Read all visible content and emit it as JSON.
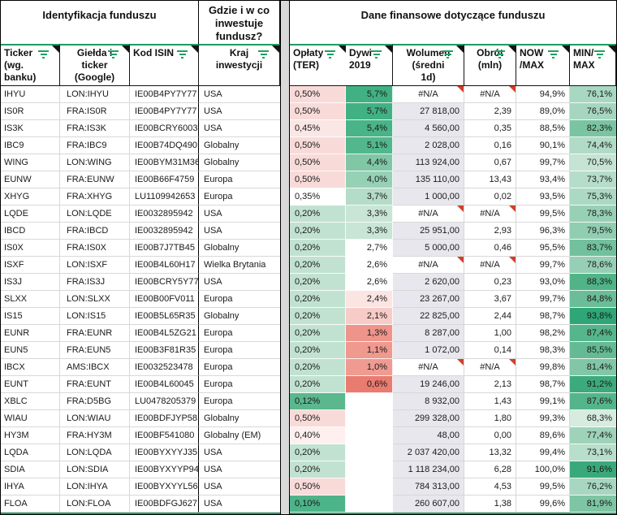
{
  "sections": {
    "identification": "Identyfikacja funduszu",
    "where": "Gdzie i w co\ninwestuje\nfundusz?",
    "financial": "Dane finansowe dotyczące funduszu"
  },
  "columns": [
    {
      "id": "ticker",
      "label": "Ticker\n(wg.\nbanku)",
      "align": "left"
    },
    {
      "id": "exchange",
      "label": "Giełda i\nticker\n(Google)",
      "align": "center"
    },
    {
      "id": "isin",
      "label": "Kod ISIN",
      "align": "left"
    },
    {
      "id": "country",
      "label": "Kraj\ninwestycji",
      "align": "center"
    },
    {
      "id": "ter",
      "label": "Opłaty\n(TER)",
      "align": "left"
    },
    {
      "id": "div2019",
      "label": "Dywi\n2019",
      "align": "left"
    },
    {
      "id": "volume",
      "label": "Wolumen\n(średni\n1d)",
      "align": "center"
    },
    {
      "id": "turnover",
      "label": "Obrót\n(mln)",
      "align": "center"
    },
    {
      "id": "now_max",
      "label": "NOW\n/MAX",
      "align": "left"
    },
    {
      "id": "min_max",
      "label": "MIN/\nMAX",
      "align": "left"
    }
  ],
  "rows": [
    {
      "ticker": "IHYU",
      "exchange": "LON:IHYU",
      "isin": "IE00B4PY7Y77",
      "country": "USA",
      "ter": "0,50%",
      "ter_bg": "#f8dbd9",
      "div2019": "5,7%",
      "div_bg": "#41b183",
      "volume": "#N/A",
      "turnover": "#N/A",
      "now_max": "94,9%",
      "min_max": "76,1%",
      "minmax_bg": "#a8d7c2"
    },
    {
      "ticker": "IS0R",
      "exchange": "FRA:IS0R",
      "isin": "IE00B4PY7Y77",
      "country": "USA",
      "ter": "0,50%",
      "ter_bg": "#f8dbd9",
      "div2019": "5,7%",
      "div_bg": "#41b183",
      "volume": "27 818,00",
      "turnover": "2,39",
      "now_max": "89,0%",
      "min_max": "76,5%",
      "minmax_bg": "#a6d6c0"
    },
    {
      "ticker": "IS3K",
      "exchange": "FRA:IS3K",
      "isin": "IE00BCRY6003",
      "country": "USA",
      "ter": "0,45%",
      "ter_bg": "#fae6e4",
      "div2019": "5,4%",
      "div_bg": "#49b487",
      "volume": "4 560,00",
      "turnover": "0,35",
      "now_max": "88,5%",
      "min_max": "82,3%",
      "minmax_bg": "#7bc4a2"
    },
    {
      "ticker": "IBC9",
      "exchange": "FRA:IBC9",
      "isin": "IE00B74DQ490",
      "country": "Globalny",
      "ter": "0,50%",
      "ter_bg": "#f8dbd9",
      "div2019": "5,1%",
      "div_bg": "#52b78c",
      "volume": "2 028,00",
      "turnover": "0,16",
      "now_max": "90,1%",
      "min_max": "74,4%",
      "minmax_bg": "#b1dbc7"
    },
    {
      "ticker": "WING",
      "exchange": "LON:WING",
      "isin": "IE00BYM31M36",
      "country": "Globalny",
      "ter": "0,50%",
      "ter_bg": "#f8dbd9",
      "div2019": "4,4%",
      "div_bg": "#7fc7a5",
      "volume": "113 924,00",
      "turnover": "0,67",
      "now_max": "99,7%",
      "min_max": "70,5%",
      "minmax_bg": "#c5e4d4"
    },
    {
      "ticker": "EUNW",
      "exchange": "FRA:EUNW",
      "isin": "IE00B66F4759",
      "country": "Europa",
      "ter": "0,50%",
      "ter_bg": "#f8dbd9",
      "div2019": "4,0%",
      "div_bg": "#97d1b5",
      "volume": "135 110,00",
      "turnover": "13,43",
      "now_max": "93,4%",
      "min_max": "73,7%",
      "minmax_bg": "#b5ddca"
    },
    {
      "ticker": "XHYG",
      "exchange": "FRA:XHYG",
      "isin": "LU1109942653",
      "country": "Europa",
      "ter": "0,35%",
      "ter_bg": "#ffffff",
      "div2019": "3,7%",
      "div_bg": "#b5dcc8",
      "volume": "1 000,00",
      "turnover": "0,02",
      "now_max": "93,5%",
      "min_max": "75,3%",
      "minmax_bg": "#acd9c4"
    },
    {
      "ticker": "LQDE",
      "exchange": "LON:LQDE",
      "isin": "IE0032895942",
      "country": "USA",
      "ter": "0,20%",
      "ter_bg": "#c2e2d1",
      "div2019": "3,3%",
      "div_bg": "#c8e5d5",
      "volume": "#N/A",
      "turnover": "#N/A",
      "now_max": "99,5%",
      "min_max": "78,3%",
      "minmax_bg": "#98d0b6"
    },
    {
      "ticker": "IBCD",
      "exchange": "FRA:IBCD",
      "isin": "IE0032895942",
      "country": "USA",
      "ter": "0,20%",
      "ter_bg": "#c2e2d1",
      "div2019": "3,3%",
      "div_bg": "#c8e5d5",
      "volume": "25 951,00",
      "turnover": "2,93",
      "now_max": "96,3%",
      "min_max": "79,5%",
      "minmax_bg": "#91cdb1"
    },
    {
      "ticker": "IS0X",
      "exchange": "FRA:IS0X",
      "isin": "IE00B7J7TB45",
      "country": "Globalny",
      "ter": "0,20%",
      "ter_bg": "#c2e2d1",
      "div2019": "2,7%",
      "div_bg": "#ffffff",
      "volume": "5 000,00",
      "turnover": "0,46",
      "now_max": "95,5%",
      "min_max": "83,7%",
      "minmax_bg": "#72c09c"
    },
    {
      "ticker": "ISXF",
      "exchange": "LON:ISXF",
      "isin": "IE00B4L60H17",
      "country": "Wielka Brytania",
      "ter": "0,20%",
      "ter_bg": "#c2e2d1",
      "div2019": "2,6%",
      "div_bg": "#ffffff",
      "volume": "#N/A",
      "turnover": "#N/A",
      "now_max": "99,7%",
      "min_max": "78,6%",
      "minmax_bg": "#96cfb5"
    },
    {
      "ticker": "IS3J",
      "exchange": "FRA:IS3J",
      "isin": "IE00BCRY5Y77",
      "country": "USA",
      "ter": "0,20%",
      "ter_bg": "#c2e2d1",
      "div2019": "2,6%",
      "div_bg": "#ffffff",
      "volume": "2 620,00",
      "turnover": "0,23",
      "now_max": "93,0%",
      "min_max": "88,3%",
      "minmax_bg": "#50b487"
    },
    {
      "ticker": "SLXX",
      "exchange": "LON:SLXX",
      "isin": "IE00B00FV011",
      "country": "Europa",
      "ter": "0,20%",
      "ter_bg": "#c2e2d1",
      "div2019": "2,4%",
      "div_bg": "#fbe5e3",
      "volume": "23 267,00",
      "turnover": "3,67",
      "now_max": "99,7%",
      "min_max": "84,8%",
      "minmax_bg": "#6abd97"
    },
    {
      "ticker": "IS15",
      "exchange": "LON:IS15",
      "isin": "IE00B5L65R35",
      "country": "Globalny",
      "ter": "0,20%",
      "ter_bg": "#c2e2d1",
      "div2019": "2,1%",
      "div_bg": "#f7ccc8",
      "volume": "22 825,00",
      "turnover": "2,44",
      "now_max": "98,7%",
      "min_max": "93,8%",
      "minmax_bg": "#2fa677"
    },
    {
      "ticker": "EUNR",
      "exchange": "FRA:EUNR",
      "isin": "IE00B4L5ZG21",
      "country": "Europa",
      "ter": "0,20%",
      "ter_bg": "#c2e2d1",
      "div2019": "1,3%",
      "div_bg": "#ef948b",
      "volume": "8 287,00",
      "turnover": "1,00",
      "now_max": "98,2%",
      "min_max": "87,4%",
      "minmax_bg": "#56b68b"
    },
    {
      "ticker": "EUN5",
      "exchange": "FRA:EUN5",
      "isin": "IE00B3F81R35",
      "country": "Europa",
      "ter": "0,20%",
      "ter_bg": "#c2e2d1",
      "div2019": "1,1%",
      "div_bg": "#ef998f",
      "volume": "1 072,00",
      "turnover": "0,14",
      "now_max": "98,3%",
      "min_max": "85,5%",
      "minmax_bg": "#64bb93"
    },
    {
      "ticker": "IBCX",
      "exchange": "AMS:IBCX",
      "isin": "IE0032523478",
      "country": "Europa",
      "ter": "0,20%",
      "ter_bg": "#c2e2d1",
      "div2019": "1,0%",
      "div_bg": "#f09b92",
      "volume": "#N/A",
      "turnover": "#N/A",
      "now_max": "99,8%",
      "min_max": "81,4%",
      "minmax_bg": "#81c6a6"
    },
    {
      "ticker": "EUNT",
      "exchange": "FRA:EUNT",
      "isin": "IE00B4L60045",
      "country": "Europa",
      "ter": "0,20%",
      "ter_bg": "#c2e2d1",
      "div2019": "0,6%",
      "div_bg": "#ea7b70",
      "volume": "19 246,00",
      "turnover": "2,13",
      "now_max": "98,7%",
      "min_max": "91,2%",
      "minmax_bg": "#3daa7c"
    },
    {
      "ticker": "XBLC",
      "exchange": "FRA:D5BG",
      "isin": "LU0478205379",
      "country": "Europa",
      "ter": "0,12%",
      "ter_bg": "#5ab78e",
      "div2019": "",
      "div_bg": "#ffffff",
      "volume": "8 932,00",
      "turnover": "1,43",
      "now_max": "99,1%",
      "min_max": "87,6%",
      "minmax_bg": "#55b58a"
    },
    {
      "ticker": "WIAU",
      "exchange": "LON:WIAU",
      "isin": "IE00BDFJYP58",
      "country": "Globalny",
      "ter": "0,50%",
      "ter_bg": "#f8dbd9",
      "div2019": "",
      "div_bg": "#ffffff",
      "volume": "299 328,00",
      "turnover": "1,80",
      "now_max": "99,3%",
      "min_max": "68,3%",
      "minmax_bg": "#d5ecdf"
    },
    {
      "ticker": "HY3M",
      "exchange": "FRA:HY3M",
      "isin": "IE00BF541080",
      "country": "Globalny (EM)",
      "ter": "0,40%",
      "ter_bg": "#fdf0ef",
      "div2019": "",
      "div_bg": "#ffffff",
      "volume": "48,00",
      "turnover": "0,00",
      "now_max": "89,6%",
      "min_max": "77,4%",
      "minmax_bg": "#9ed3ba"
    },
    {
      "ticker": "LQDA",
      "exchange": "LON:LQDA",
      "isin": "IE00BYXYYJ35",
      "country": "USA",
      "ter": "0,20%",
      "ter_bg": "#c2e2d1",
      "div2019": "",
      "div_bg": "#ffffff",
      "volume": "2 037 420,00",
      "turnover": "13,32",
      "now_max": "99,4%",
      "min_max": "73,1%",
      "minmax_bg": "#b8decc"
    },
    {
      "ticker": "SDIA",
      "exchange": "LON:SDIA",
      "isin": "IE00BYXYYP94",
      "country": "USA",
      "ter": "0,20%",
      "ter_bg": "#c2e2d1",
      "div2019": "",
      "div_bg": "#ffffff",
      "volume": "1 118 234,00",
      "turnover": "6,28",
      "now_max": "100,0%",
      "min_max": "91,6%",
      "minmax_bg": "#3aa97a"
    },
    {
      "ticker": "IHYA",
      "exchange": "LON:IHYA",
      "isin": "IE00BYXYYL56",
      "country": "USA",
      "ter": "0,50%",
      "ter_bg": "#f8dbd9",
      "div2019": "",
      "div_bg": "#ffffff",
      "volume": "784 313,00",
      "turnover": "4,53",
      "now_max": "99,5%",
      "min_max": "76,2%",
      "minmax_bg": "#a7d6c1"
    },
    {
      "ticker": "FLOA",
      "exchange": "LON:FLOA",
      "isin": "IE00BDFGJ627",
      "country": "USA",
      "ter": "0,10%",
      "ter_bg": "#4db389",
      "div2019": "",
      "div_bg": "#ffffff",
      "volume": "260 607,00",
      "turnover": "1,38",
      "now_max": "99,6%",
      "min_max": "81,9%",
      "minmax_bg": "#7dc5a3"
    }
  ],
  "na_value": "#N/A",
  "colors": {
    "header_separator_green": "#1e9c62",
    "bottom_bar_green": "#1e9c62",
    "filter_icon_green": "#1fa163",
    "note_marker_red": "#d13f2a",
    "comment_marker_black": "#141414",
    "volume_column_bg": "#e8e7ee",
    "separator_column_bg": "#d9d9d9",
    "gridline": "#d8d8d8",
    "section_border": "#000000"
  }
}
